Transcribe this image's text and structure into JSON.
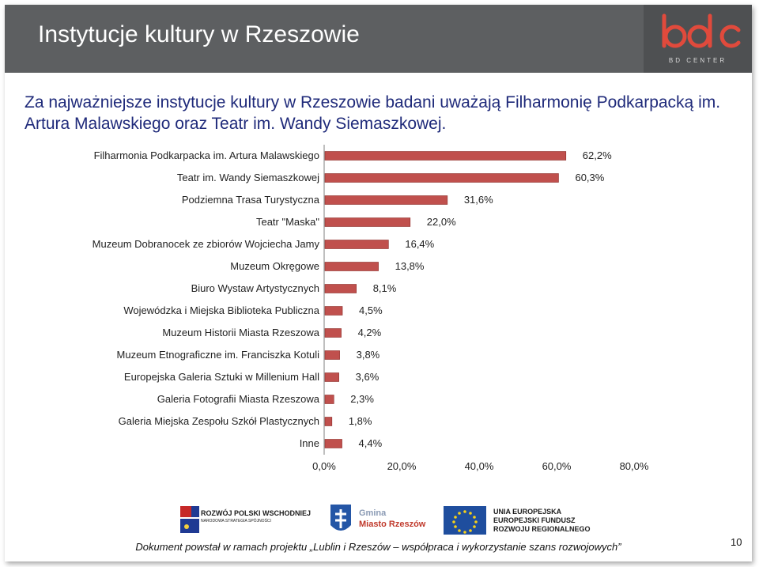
{
  "header": {
    "title": "Instytucje kultury w Rzeszowie",
    "logo_text": "bdc",
    "logo_subtext": "BD CENTER"
  },
  "subtitle": "Za najważniejsze instytucje kultury w Rzeszowie badani uważają Filharmonię Podkarpacką im. Artura Malawskiego oraz Teatr im. Wandy Siemaszkowej.",
  "colors": {
    "bar": "#c0504d",
    "bar_border": "#8c2d2a",
    "header_bg": "#5d5f61",
    "subtitle_text": "#1f2a7a"
  },
  "chart_data": {
    "type": "bar",
    "orientation": "horizontal",
    "categories": [
      "Filharmonia Podkarpacka im. Artura Malawskiego",
      "Teatr im. Wandy Siemaszkowej",
      "Podziemna Trasa Turystyczna",
      "Teatr \"Maska\"",
      "Muzeum Dobranocek ze zbiorów Wojciecha Jamy",
      "Muzeum Okręgowe",
      "Biuro Wystaw Artystycznych",
      "Wojewódzka i Miejska Biblioteka Publiczna",
      "Muzeum Historii Miasta Rzeszowa",
      "Muzeum Etnograficzne im. Franciszka Kotuli",
      "Europejska Galeria Sztuki w Millenium Hall",
      "Galeria Fotografii Miasta Rzeszowa",
      "Galeria Miejska Zespołu Szkół Plastycznych",
      "Inne"
    ],
    "values": [
      62.2,
      60.3,
      31.6,
      22.0,
      16.4,
      13.8,
      8.1,
      4.5,
      4.2,
      3.8,
      3.6,
      2.3,
      1.8,
      4.4
    ],
    "value_labels": [
      "62,2%",
      "60,3%",
      "31,6%",
      "22,0%",
      "16,4%",
      "13,8%",
      "8,1%",
      "4,5%",
      "4,2%",
      "3,8%",
      "3,6%",
      "2,3%",
      "1,8%",
      "4,4%"
    ],
    "xlim": [
      0,
      80
    ],
    "xticks": [
      "0,0%",
      "20,0%",
      "40,0%",
      "60,0%",
      "80,0%"
    ],
    "grid": false,
    "legend": "none"
  },
  "logos": {
    "rpw_line1": "ROZWÓJ POLSKI WSCHODNIEJ",
    "rpw_line2": "NARODOWA STRATEGIA SPÓJNOŚCI",
    "gmina_line1": "Gmina",
    "gmina_line2": "Miasto Rzeszów",
    "ue_line1": "UNIA EUROPEJSKA",
    "ue_line2": "EUROPEJSKI FUNDUSZ",
    "ue_line3": "ROZWOJU REGIONALNEGO"
  },
  "footer": {
    "text": "Dokument powstał w ramach projektu „Lublin i Rzeszów – współpraca i wykorzystanie szans rozwojowych”",
    "page_number": "10"
  }
}
